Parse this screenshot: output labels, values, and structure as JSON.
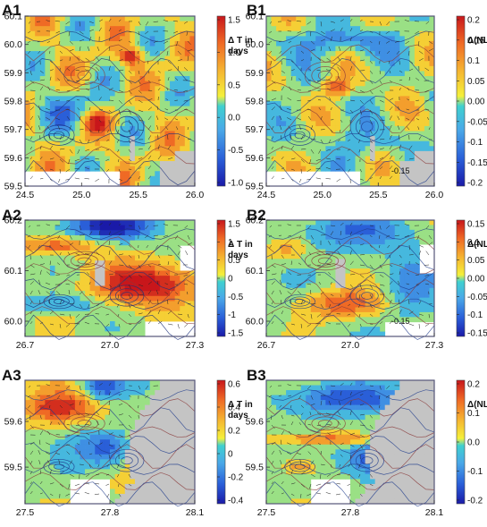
{
  "chart_data": [
    {
      "id": "A1",
      "label": "A1",
      "type": "heatmap",
      "xticks": [
        "24.5",
        "25.0",
        "25.5",
        "26.0"
      ],
      "xrange": [
        24.5,
        26.0
      ],
      "yticks": [
        "59.5",
        "59.6",
        "59.7",
        "59.8",
        "59.9",
        "60.0",
        "60.1"
      ],
      "yrange": [
        59.5,
        60.1
      ],
      "colorbar": {
        "title": [
          "Δ T in",
          "days"
        ],
        "ticks": [
          "1.5",
          "1.0",
          "0.5",
          "0.0",
          "-0.5",
          "-1.0"
        ],
        "range": [
          -1.5,
          1.5
        ]
      },
      "annotation": ""
    },
    {
      "id": "B1",
      "label": "B1",
      "type": "heatmap",
      "xticks": [
        "24.5",
        "25.0",
        "25.5",
        "26.0"
      ],
      "xrange": [
        24.5,
        26.0
      ],
      "yticks": [
        "59.5",
        "59.6",
        "59.7",
        "59.8",
        "59.9",
        "60.0",
        "60.1"
      ],
      "yrange": [
        59.5,
        60.1
      ],
      "colorbar": {
        "title": [
          "Δ(NL/NT)"
        ],
        "ticks": [
          "0.2",
          "0.15",
          "0.1",
          "0.05",
          "0.00",
          "-0.05",
          "-0.1",
          "-0.15",
          "-0.2"
        ],
        "range": [
          -0.2,
          0.2
        ]
      },
      "annotation": "-0.15"
    },
    {
      "id": "A2",
      "label": "A2",
      "type": "heatmap",
      "xticks": [
        "26.7",
        "27.0",
        "27.3"
      ],
      "xrange": [
        26.7,
        27.3
      ],
      "yticks": [
        "60.0",
        "60.1",
        "60.2"
      ],
      "yrange": [
        59.97,
        60.2
      ],
      "colorbar": {
        "title": [
          "Δ T in",
          "days"
        ],
        "ticks": [
          "1.5",
          "1",
          "0.5",
          "0",
          "-0.5",
          "-1",
          "-1.5"
        ],
        "range": [
          -1.5,
          1.5
        ]
      },
      "annotation": ""
    },
    {
      "id": "B2",
      "label": "B2",
      "type": "heatmap",
      "xticks": [
        "26.7",
        "27.0",
        "27.3"
      ],
      "xrange": [
        26.7,
        27.3
      ],
      "yticks": [
        "60.0",
        "60.1",
        "60.2"
      ],
      "yrange": [
        59.97,
        60.2
      ],
      "colorbar": {
        "title": [
          "Δ(NL/NT)"
        ],
        "ticks": [
          "0.15",
          "0.1",
          "0.05",
          "0.00",
          "-0.05",
          "-0.1",
          "-0.15"
        ],
        "range": [
          -0.15,
          0.15
        ]
      },
      "annotation": "-0.15"
    },
    {
      "id": "A3",
      "label": "A3",
      "type": "heatmap",
      "xticks": [
        "27.5",
        "27.8",
        "28.1"
      ],
      "xrange": [
        27.5,
        28.1
      ],
      "yticks": [
        "59.5",
        "59.6"
      ],
      "yrange": [
        59.42,
        59.69
      ],
      "colorbar": {
        "title": [
          "Δ T in",
          "days"
        ],
        "ticks": [
          "0.6",
          "0.4",
          "0.2",
          "0",
          "-0.2",
          "-0.4"
        ],
        "range": [
          -0.5,
          0.6
        ]
      },
      "annotation": ""
    },
    {
      "id": "B3",
      "label": "B3",
      "type": "heatmap",
      "xticks": [
        "27.5",
        "27.8",
        "28.1"
      ],
      "xrange": [
        27.5,
        28.1
      ],
      "yticks": [
        "59.5",
        "59.6"
      ],
      "yrange": [
        59.42,
        59.69
      ],
      "colorbar": {
        "title": [
          "Δ(NL/NT)"
        ],
        "ticks": [
          "0.2",
          "0.1",
          "0.0",
          "-0.1",
          "-0.2"
        ],
        "range": [
          -0.2,
          0.25
        ]
      },
      "annotation": ""
    }
  ]
}
